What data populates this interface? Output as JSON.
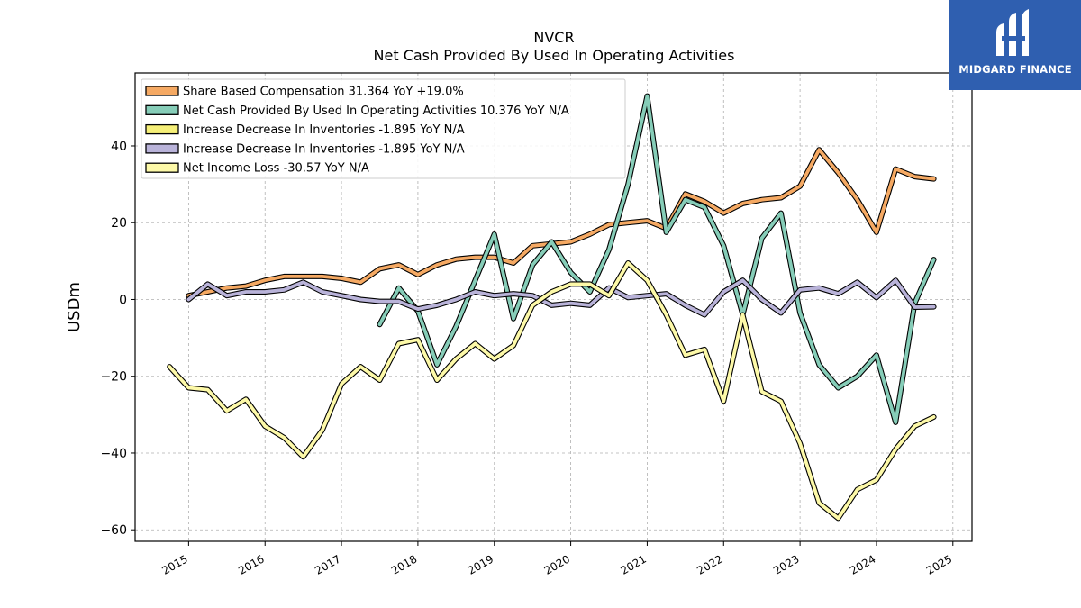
{
  "chart_data": {
    "type": "line",
    "title": "NVCR",
    "subtitle": "Net Cash Provided By Used In Operating Activities",
    "xlabel": "",
    "ylabel": "USDm",
    "ylim": [
      -63,
      59
    ],
    "xlim": [
      2014.3,
      2025.25
    ],
    "x_ticks": [
      2015,
      2016,
      2017,
      2018,
      2019,
      2020,
      2021,
      2022,
      2023,
      2024,
      2025
    ],
    "y_ticks": [
      -60,
      -40,
      -20,
      0,
      20,
      40
    ],
    "grid": true,
    "legend_position": "top-left",
    "series": [
      {
        "name": "Share Based Compensation  31.364 YoY +19.0%",
        "color": "#f5a963",
        "x": [
          2015.0,
          2015.25,
          2015.5,
          2015.75,
          2016.0,
          2016.25,
          2016.5,
          2016.75,
          2017.0,
          2017.25,
          2017.5,
          2017.75,
          2018.0,
          2018.25,
          2018.5,
          2018.75,
          2019.0,
          2019.25,
          2019.5,
          2019.75,
          2020.0,
          2020.25,
          2020.5,
          2020.75,
          2021.0,
          2021.25,
          2021.5,
          2021.75,
          2022.0,
          2022.25,
          2022.5,
          2022.75,
          2023.0,
          2023.25,
          2023.5,
          2023.75,
          2024.0,
          2024.25,
          2024.5,
          2024.75
        ],
        "values": [
          1,
          2,
          3,
          3.5,
          5,
          6,
          6,
          6,
          5.5,
          4.5,
          8,
          9,
          6.5,
          9,
          10.5,
          11,
          11,
          9.5,
          14,
          14.5,
          15,
          17,
          19.5,
          20,
          20.5,
          18.5,
          27.5,
          25.5,
          22.5,
          25,
          26,
          26.5,
          29.5,
          39,
          33,
          26,
          17.5,
          34,
          32,
          31.4
        ]
      },
      {
        "name": "Net Cash Provided By Used In Operating Activities  10.376 YoY N/A",
        "color": "#86cdb8",
        "x": [
          2017.5,
          2017.75,
          2018.0,
          2018.25,
          2018.5,
          2018.75,
          2019.0,
          2019.25,
          2019.5,
          2019.75,
          2020.0,
          2020.25,
          2020.5,
          2020.75,
          2021.0,
          2021.25,
          2021.5,
          2021.75,
          2022.0,
          2022.25,
          2022.5,
          2022.75,
          2023.0,
          2023.25,
          2023.5,
          2023.75,
          2024.0,
          2024.25,
          2024.5,
          2024.75
        ],
        "values": [
          -6.5,
          3,
          -3,
          -17,
          -7,
          5,
          17,
          -5,
          9,
          15,
          7,
          2,
          13,
          30,
          53,
          17.5,
          26,
          24,
          14,
          -4,
          16,
          22.5,
          -3.5,
          -17,
          -23,
          -20,
          -14.5,
          -32,
          -1,
          10.4
        ]
      },
      {
        "name": "Increase Decrease In Inventories  -1.895 YoY N/A",
        "color": "#f5ef78",
        "x": [],
        "values": []
      },
      {
        "name": "Increase Decrease In Inventories  -1.895 YoY N/A",
        "color": "#b9b3d9",
        "x": [
          2015.0,
          2015.25,
          2015.5,
          2015.75,
          2016.0,
          2016.25,
          2016.5,
          2016.75,
          2017.0,
          2017.25,
          2017.5,
          2017.75,
          2018.0,
          2018.25,
          2018.5,
          2018.75,
          2019.0,
          2019.25,
          2019.5,
          2019.75,
          2020.0,
          2020.25,
          2020.5,
          2020.75,
          2021.0,
          2021.25,
          2021.5,
          2021.75,
          2022.0,
          2022.25,
          2022.5,
          2022.75,
          2023.0,
          2023.25,
          2023.5,
          2023.75,
          2024.0,
          2024.25,
          2024.5,
          2024.75
        ],
        "values": [
          0,
          4,
          1,
          2,
          2,
          2.5,
          4.5,
          2,
          1,
          0,
          -0.5,
          -0.5,
          -2.5,
          -1.5,
          0,
          2,
          1,
          1.5,
          1,
          -1.5,
          -1,
          -1.5,
          3,
          0.5,
          1,
          1.5,
          -1.5,
          -4,
          2,
          5,
          0,
          -3.5,
          2.5,
          3,
          1.5,
          4.5,
          0.5,
          5,
          -2,
          -1.9
        ]
      },
      {
        "name": "Net Income Loss  -30.57 YoY N/A",
        "color": "#fdf9a8",
        "x": [
          2014.75,
          2015.0,
          2015.25,
          2015.5,
          2015.75,
          2016.0,
          2016.25,
          2016.5,
          2016.75,
          2017.0,
          2017.25,
          2017.5,
          2017.75,
          2018.0,
          2018.25,
          2018.5,
          2018.75,
          2019.0,
          2019.25,
          2019.5,
          2019.75,
          2020.0,
          2020.25,
          2020.5,
          2020.75,
          2021.0,
          2021.25,
          2021.5,
          2021.75,
          2022.0,
          2022.25,
          2022.5,
          2022.75,
          2023.0,
          2023.25,
          2023.5,
          2023.75,
          2024.0,
          2024.25,
          2024.5,
          2024.75
        ],
        "values": [
          -17.5,
          -23,
          -23.5,
          -29,
          -26,
          -33,
          -36,
          -41,
          -34,
          -22,
          -17.5,
          -21,
          -11.5,
          -10.5,
          -21,
          -15.5,
          -11.5,
          -15.5,
          -12,
          -1.5,
          2,
          4,
          4,
          1,
          9.5,
          5,
          -4,
          -14.5,
          -13,
          -26.5,
          -4,
          -24,
          -26.5,
          -37.5,
          -53,
          -57,
          -49.5,
          -47,
          -39,
          -33,
          -30.6
        ]
      }
    ]
  },
  "brand": {
    "name": "MIDGARD FINANCE",
    "logo_icon": "midgard-mi-logo-icon",
    "background": "#2f5fb0"
  }
}
